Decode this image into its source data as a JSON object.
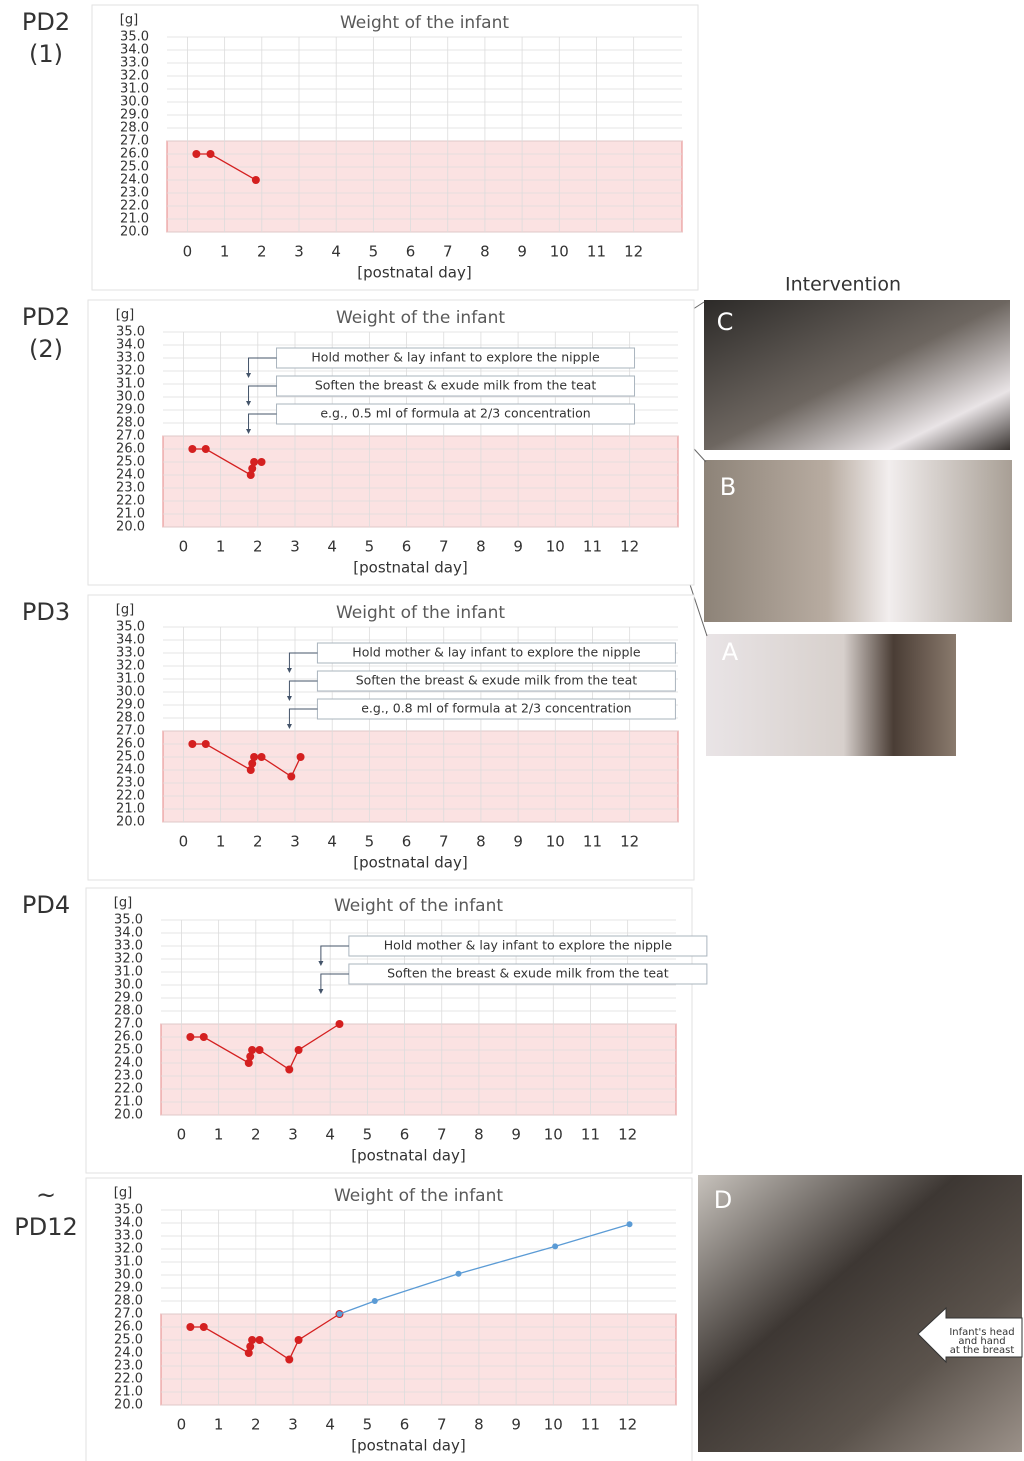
{
  "chart_data": [
    {
      "type": "line",
      "panel_label": [
        "PD2",
        "(1)"
      ],
      "title": "Weight of the infant",
      "y_unit": "[g]",
      "xlabel": "[postnatal day]",
      "xlim": [
        -0.55,
        13.3
      ],
      "ylim": [
        20,
        35
      ],
      "xticks": [
        0,
        1,
        2,
        3,
        4,
        5,
        6,
        7,
        8,
        9,
        10,
        11,
        12
      ],
      "yticks": [
        {
          "value": 20,
          "label": "20.0"
        },
        {
          "value": 21,
          "label": "21.0"
        },
        {
          "value": 22,
          "label": "22.0"
        },
        {
          "value": 23,
          "label": "23.0"
        },
        {
          "value": 24,
          "label": "24.0"
        },
        {
          "value": 25,
          "label": "25.0"
        },
        {
          "value": 26,
          "label": "26.0"
        },
        {
          "value": 27,
          "label": "27.0"
        },
        {
          "value": 28,
          "label": "28.0"
        },
        {
          "value": 29,
          "label": "29.0"
        },
        {
          "value": 30,
          "label": "30.0"
        },
        {
          "value": 31,
          "label": "31.0"
        },
        {
          "value": 32,
          "label": "32.0"
        },
        {
          "value": 33,
          "label": "33.0"
        },
        {
          "value": 34,
          "label": "34.0"
        },
        {
          "value": 35,
          "label": "35.0"
        }
      ],
      "grid": true,
      "target_range": [
        20,
        27
      ],
      "target_color": "#fbe2e2",
      "series": [
        {
          "color": "#d42020",
          "x": [
            0.24,
            0.62,
            1.84
          ],
          "values": [
            26,
            26,
            24
          ]
        }
      ],
      "annotations": []
    },
    {
      "type": "line",
      "panel_label": [
        "PD2",
        "(2)"
      ],
      "title": "Weight of the infant",
      "y_unit": "[g]",
      "xlabel": "[postnatal day]",
      "xlim": [
        -0.55,
        13.3
      ],
      "ylim": [
        20,
        35
      ],
      "xticks": [
        0,
        1,
        2,
        3,
        4,
        5,
        6,
        7,
        8,
        9,
        10,
        11,
        12
      ],
      "yticks": [
        {
          "value": 20,
          "label": "20.0"
        },
        {
          "value": 21,
          "label": "21.0"
        },
        {
          "value": 22,
          "label": "22.0"
        },
        {
          "value": 23,
          "label": "23.0"
        },
        {
          "value": 24,
          "label": "24.0"
        },
        {
          "value": 25,
          "label": "25.0"
        },
        {
          "value": 26,
          "label": "26.0"
        },
        {
          "value": 27,
          "label": "27.0"
        },
        {
          "value": 28,
          "label": "28.0"
        },
        {
          "value": 29,
          "label": "29.0"
        },
        {
          "value": 30,
          "label": "30.0"
        },
        {
          "value": 31,
          "label": "31.0"
        },
        {
          "value": 32,
          "label": "32.0"
        },
        {
          "value": 33,
          "label": "33.0"
        },
        {
          "value": 34,
          "label": "34.0"
        },
        {
          "value": 35,
          "label": "35.0"
        }
      ],
      "grid": true,
      "target_range": [
        20,
        27
      ],
      "target_color": "#fbe2e2",
      "series": [
        {
          "color": "#d42020",
          "x": [
            0.24,
            0.6,
            1.81,
            1.85,
            1.9,
            2.1
          ],
          "values": [
            26,
            26,
            24,
            24.5,
            25,
            25
          ]
        }
      ],
      "annotations": [
        {
          "text": "Hold mother & lay infant to explore the nipple",
          "x": 1.75
        },
        {
          "text": "Soften the breast & exude milk from the teat",
          "x": 1.75
        },
        {
          "text": "e.g.,  0.5 ml of formula at 2/3 concentration",
          "x": 1.75
        }
      ]
    },
    {
      "type": "line",
      "panel_label": [
        "PD3"
      ],
      "title": "Weight of the infant",
      "y_unit": "[g]",
      "xlabel": "[postnatal day]",
      "xlim": [
        -0.55,
        13.3
      ],
      "ylim": [
        20,
        35
      ],
      "xticks": [
        0,
        1,
        2,
        3,
        4,
        5,
        6,
        7,
        8,
        9,
        10,
        11,
        12
      ],
      "yticks": [
        {
          "value": 20,
          "label": "20.0"
        },
        {
          "value": 21,
          "label": "21.0"
        },
        {
          "value": 22,
          "label": "22.0"
        },
        {
          "value": 23,
          "label": "23.0"
        },
        {
          "value": 24,
          "label": "24.0"
        },
        {
          "value": 25,
          "label": "25.0"
        },
        {
          "value": 26,
          "label": "26.0"
        },
        {
          "value": 27,
          "label": "27.0"
        },
        {
          "value": 28,
          "label": "28.0"
        },
        {
          "value": 29,
          "label": "29.0"
        },
        {
          "value": 30,
          "label": "30.0"
        },
        {
          "value": 31,
          "label": "31.0"
        },
        {
          "value": 32,
          "label": "32.0"
        },
        {
          "value": 33,
          "label": "33.0"
        },
        {
          "value": 34,
          "label": "34.0"
        },
        {
          "value": 35,
          "label": "35.0"
        }
      ],
      "grid": true,
      "target_range": [
        20,
        27
      ],
      "target_color": "#fbe2e2",
      "series": [
        {
          "color": "#d42020",
          "x": [
            0.24,
            0.6,
            1.81,
            1.85,
            1.9,
            2.1,
            2.9,
            3.15
          ],
          "values": [
            26,
            26,
            24,
            24.5,
            25,
            25,
            23.5,
            25
          ]
        }
      ],
      "annotations": [
        {
          "text": "Hold mother & lay infant to explore the nipple",
          "x": 2.85
        },
        {
          "text": "Soften the breast & exude milk from the teat",
          "x": 2.85
        },
        {
          "text": "e.g.,  0.8 ml of formula at 2/3 concentration",
          "x": 2.85
        }
      ]
    },
    {
      "type": "line",
      "panel_label": [
        "PD4"
      ],
      "title": "Weight of the infant",
      "y_unit": "[g]",
      "xlabel": "[postnatal day]",
      "xlim": [
        -0.55,
        13.3
      ],
      "ylim": [
        20,
        35
      ],
      "xticks": [
        0,
        1,
        2,
        3,
        4,
        5,
        6,
        7,
        8,
        9,
        10,
        11,
        12
      ],
      "yticks": [
        {
          "value": 20,
          "label": "20.0"
        },
        {
          "value": 21,
          "label": "21.0"
        },
        {
          "value": 22,
          "label": "22.0"
        },
        {
          "value": 23,
          "label": "23.0"
        },
        {
          "value": 24,
          "label": "24.0"
        },
        {
          "value": 25,
          "label": "25.0"
        },
        {
          "value": 26,
          "label": "26.0"
        },
        {
          "value": 27,
          "label": "27.0"
        },
        {
          "value": 28,
          "label": "28.0"
        },
        {
          "value": 29,
          "label": "29.0"
        },
        {
          "value": 30,
          "label": "30.0"
        },
        {
          "value": 31,
          "label": "31.0"
        },
        {
          "value": 32,
          "label": "32.0"
        },
        {
          "value": 33,
          "label": "33.0"
        },
        {
          "value": 34,
          "label": "34.0"
        },
        {
          "value": 35,
          "label": "35.0"
        }
      ],
      "grid": true,
      "target_range": [
        20,
        27
      ],
      "target_color": "#fbe2e2",
      "series": [
        {
          "color": "#d42020",
          "x": [
            0.24,
            0.6,
            1.81,
            1.85,
            1.9,
            2.1,
            2.9,
            3.15,
            4.25
          ],
          "values": [
            26,
            26,
            24,
            24.5,
            25,
            25,
            23.5,
            25,
            27
          ]
        }
      ],
      "annotations": [
        {
          "text": "Hold mother & lay infant to explore the nipple",
          "x": 3.75
        },
        {
          "text": "Soften the breast & exude milk from the teat",
          "x": 3.75
        }
      ]
    },
    {
      "type": "line",
      "panel_label": [
        "~",
        "PD12"
      ],
      "title": "Weight of the infant",
      "y_unit": "[g]",
      "xlabel": "[postnatal day]",
      "xlim": [
        -0.55,
        13.3
      ],
      "ylim": [
        20,
        35
      ],
      "xticks": [
        0,
        1,
        2,
        3,
        4,
        5,
        6,
        7,
        8,
        9,
        10,
        11,
        12
      ],
      "yticks": [
        {
          "value": 20,
          "label": "20.0"
        },
        {
          "value": 21,
          "label": "21.0"
        },
        {
          "value": 22,
          "label": "22.0"
        },
        {
          "value": 23,
          "label": "23.0"
        },
        {
          "value": 24,
          "label": "24.0"
        },
        {
          "value": 25,
          "label": "25.0"
        },
        {
          "value": 26,
          "label": "26.0"
        },
        {
          "value": 27,
          "label": "27.0"
        },
        {
          "value": 28,
          "label": "28.0"
        },
        {
          "value": 29,
          "label": "29.0"
        },
        {
          "value": 30,
          "label": "30.0"
        },
        {
          "value": 31,
          "label": "31.0"
        },
        {
          "value": 32,
          "label": "32.0"
        },
        {
          "value": 33,
          "label": "33.0"
        },
        {
          "value": 34,
          "label": "34.0"
        },
        {
          "value": 35,
          "label": "35.0"
        }
      ],
      "grid": true,
      "target_range": [
        20,
        27
      ],
      "target_color": "#fbe2e2",
      "series": [
        {
          "color": "#d42020",
          "x": [
            0.24,
            0.6,
            1.81,
            1.85,
            1.9,
            2.1,
            2.9,
            3.15,
            4.25
          ],
          "values": [
            26,
            26,
            24,
            24.5,
            25,
            25,
            23.5,
            25,
            27
          ]
        },
        {
          "color": "#5b9bd5",
          "x": [
            4.25,
            5.2,
            7.45,
            10.05,
            12.05
          ],
          "values": [
            27,
            28,
            30.1,
            32.2,
            33.9
          ]
        }
      ],
      "annotations": []
    }
  ],
  "intervention_title": "Intervention",
  "photos": [
    {
      "label": "C"
    },
    {
      "label": "B"
    },
    {
      "label": "A"
    },
    {
      "label": "D"
    }
  ],
  "callout": [
    "Infant's head",
    "and hand",
    "at the breast"
  ]
}
